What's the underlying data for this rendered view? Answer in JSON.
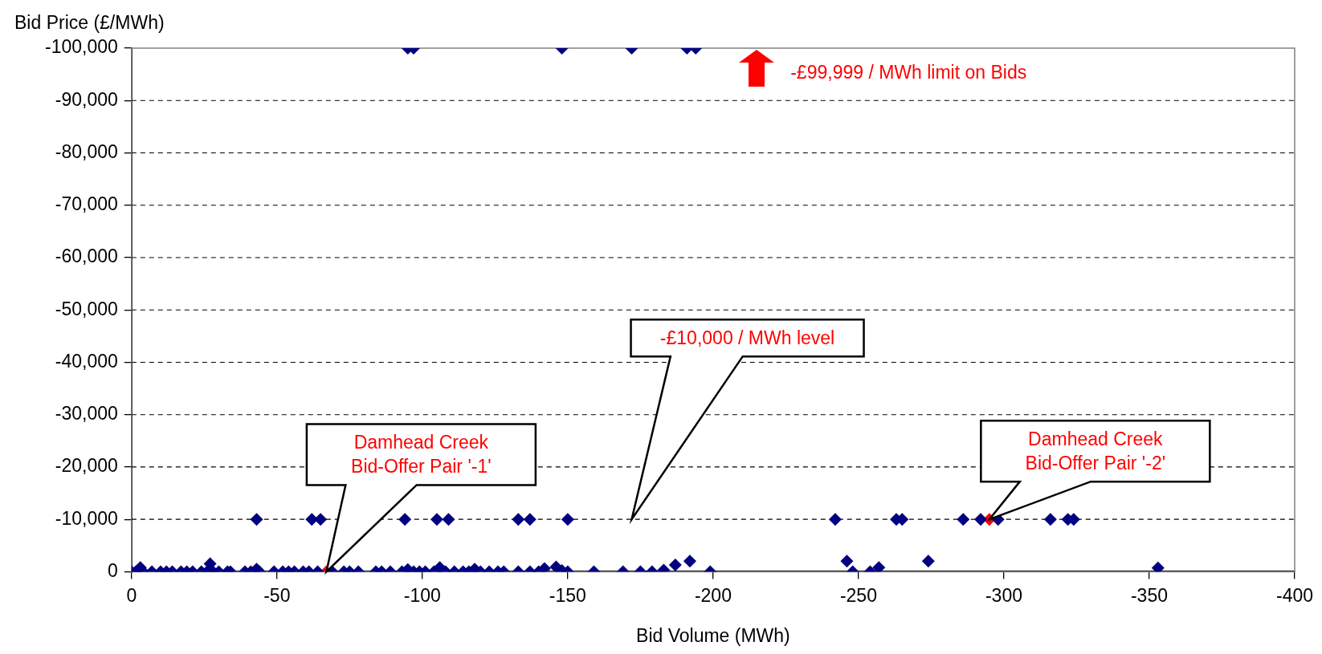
{
  "chart_data": {
    "type": "scatter",
    "xlabel": "Bid Volume (MWh)",
    "ylabel": "Bid Price (£/MWh)",
    "xlim": [
      0,
      -400
    ],
    "xticks": [
      0,
      -50,
      -100,
      -150,
      -200,
      -250,
      -300,
      -350,
      -400
    ],
    "ylim": [
      0,
      -100000
    ],
    "yticks": [
      {
        "value": 0,
        "label": "0"
      },
      {
        "value": -10000,
        "label": "-10,000"
      },
      {
        "value": -20000,
        "label": "-20,000"
      },
      {
        "value": -30000,
        "label": "-30,000"
      },
      {
        "value": -40000,
        "label": "-40,000"
      },
      {
        "value": -50000,
        "label": "-50,000"
      },
      {
        "value": -60000,
        "label": "-60,000"
      },
      {
        "value": -70000,
        "label": "-70,000"
      },
      {
        "value": -80000,
        "label": "-80,000"
      },
      {
        "value": -90000,
        "label": "-90,000"
      },
      {
        "value": -100000,
        "label": "-100,000"
      }
    ],
    "grid": "y",
    "legend": false,
    "marker": "diamond",
    "series": [
      {
        "color": "#000080",
        "x": [
          -95,
          -97,
          -148,
          -172,
          -191,
          -194,
          -43,
          -62,
          -65,
          -94,
          -105,
          -109,
          -133,
          -137,
          -150,
          -242,
          -263,
          -265,
          -286,
          -292,
          -298,
          -316,
          -322,
          -324,
          0,
          -1.5,
          -3,
          -4,
          -7,
          -10,
          -12,
          -14,
          -17,
          -19,
          -21,
          -24,
          -26,
          -27,
          -28,
          -30,
          -33,
          -34,
          -39,
          -41,
          -43,
          -44,
          -49,
          -52,
          -54,
          -56,
          -59,
          -61,
          -64,
          -69,
          -73,
          -75,
          -78,
          -84,
          -86,
          -89,
          -93,
          -95,
          -97,
          -99,
          -101,
          -104,
          -106,
          -108,
          -111,
          -114,
          -116,
          -118,
          -120,
          -123,
          -126,
          -128,
          -133,
          -137,
          -140,
          -142,
          -146,
          -148,
          -150,
          -159,
          -169,
          -175,
          -179,
          -183,
          -187,
          -192,
          -199,
          -246,
          -248,
          -254,
          -257,
          -274,
          -353
        ],
        "values": [
          -100000,
          -100000,
          -100000,
          -100000,
          -100000,
          -100000,
          -10000,
          -10000,
          -10000,
          -10000,
          -10000,
          -10000,
          -10000,
          -10000,
          -10000,
          -10000,
          -10000,
          -10000,
          -10000,
          -10000,
          -10000,
          -10000,
          -10000,
          -10000,
          0,
          0,
          -800,
          0,
          0,
          0,
          0,
          0,
          0,
          0,
          0,
          0,
          0,
          -1500,
          0,
          0,
          0,
          0,
          0,
          0,
          -500,
          0,
          0,
          0,
          0,
          0,
          0,
          0,
          0,
          0,
          0,
          0,
          0,
          0,
          0,
          0,
          0,
          -400,
          0,
          0,
          0,
          0,
          -800,
          0,
          0,
          0,
          0,
          -500,
          0,
          0,
          0,
          0,
          0,
          0,
          0,
          -600,
          -900,
          -200,
          0,
          0,
          0,
          0,
          0,
          -300,
          -1300,
          -2000,
          0,
          -2000,
          0,
          0,
          -800,
          -2000,
          -700
        ]
      },
      {
        "color": "#ff0000",
        "x": [
          -67,
          -295
        ],
        "values": [
          0,
          -10000
        ]
      }
    ],
    "annotations": [
      "-£10,000 / MWh level",
      "Damhead Creek Bid-Offer Pair '-1'",
      "Damhead Creek Bid-Offer Pair '-2'",
      "-£99,999 / MWh limit on Bids"
    ]
  }
}
